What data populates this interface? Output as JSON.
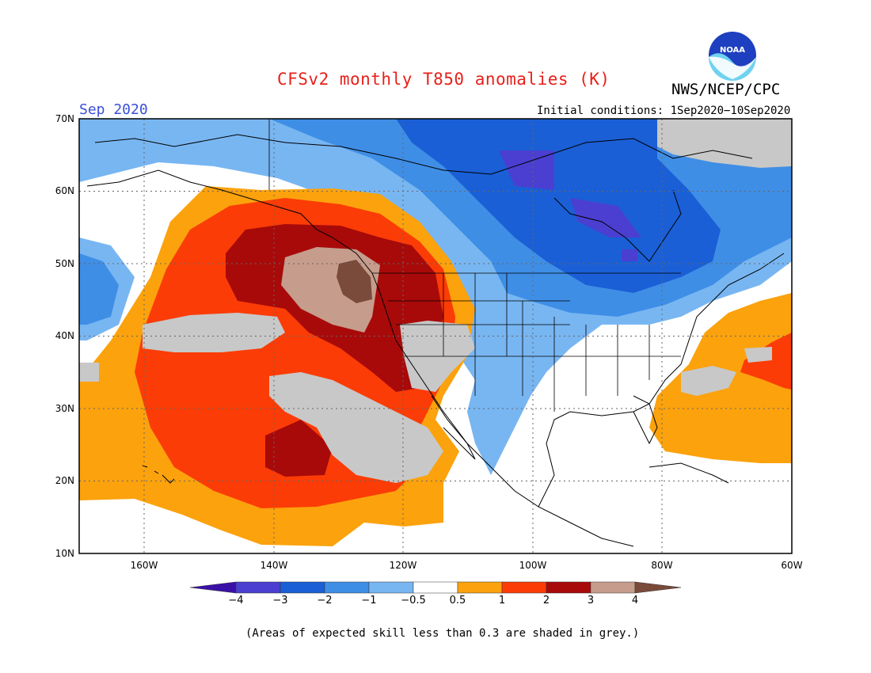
{
  "header": {
    "title": "CFSv2 monthly T850 anomalies (K)",
    "agency": "NWS/NCEP/CPC",
    "logo_text": "NOAA",
    "month": "Sep 2020",
    "initial_conditions": "Initial conditions: 1Sep2020−10Sep2020"
  },
  "map": {
    "lon_range": [
      -172,
      -60
    ],
    "lat_range": [
      10,
      70
    ],
    "lat_ticks": [
      "70N",
      "60N",
      "50N",
      "40N",
      "30N",
      "20N",
      "10N"
    ],
    "lon_ticks": [
      "160W",
      "140W",
      "120W",
      "100W",
      "80W",
      "60W"
    ],
    "grey_meaning": "skill < 0.3"
  },
  "colorbar": {
    "labels": [
      "−4",
      "−3",
      "−2",
      "−1",
      "−0.5",
      "0.5",
      "1",
      "2",
      "3",
      "4"
    ],
    "colors": [
      "#3b10a8",
      "#4a3fd0",
      "#1a5fd6",
      "#3f8ee6",
      "#78b6f2",
      "#ffffff",
      "#fba20d",
      "#fb3c06",
      "#a80a0a",
      "#c69c8c",
      "#7a4a3a"
    ]
  },
  "footnote": "(Areas of expected skill less than 0.3 are shaded in grey.)"
}
